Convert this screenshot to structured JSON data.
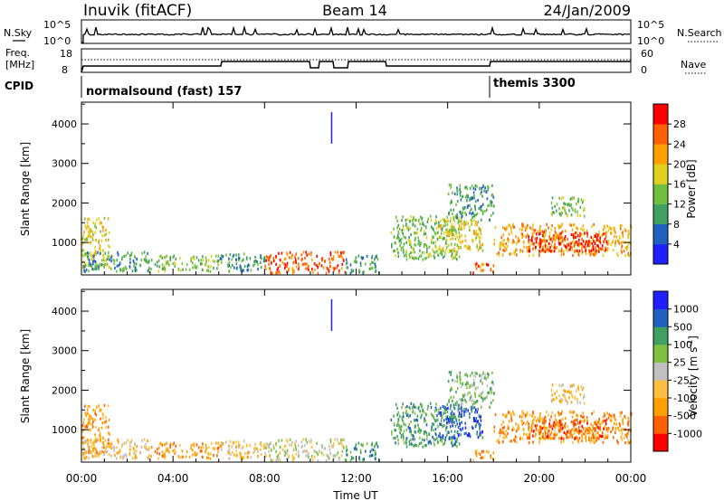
{
  "header": {
    "station": "Inuvik (fitACF)",
    "beam": "Beam 14",
    "date": "24/Jan/2009"
  },
  "panel_labels": {
    "nsky": "N.Sky",
    "freq_line1": "Freq.",
    "freq_line2": "[MHz]",
    "cpid": "CPID",
    "nsearch": "N.Search",
    "nave": "Nave",
    "nsky_top": "10^5",
    "nsky_bottom": "10^0",
    "nsearch_top": "10^5",
    "nsearch_bottom": "10^0",
    "freq_top": "18",
    "freq_bottom": "8",
    "nave_top": "60",
    "nave_bottom": "0"
  },
  "cpid_labels": {
    "first": "normalsound (fast) 157",
    "second": "themis 3300"
  },
  "colors": {
    "power": [
      "#2020ff",
      "#2060c0",
      "#40a060",
      "#70c040",
      "#e0d020",
      "#ffa000",
      "#ff6000",
      "#ff0000"
    ],
    "velocity": [
      "#ff0000",
      "#ff6000",
      "#ffa000",
      "#ffc040",
      "#c0c0c0",
      "#80c040",
      "#40a060",
      "#2060c0",
      "#2020ff"
    ]
  },
  "chart_data": [
    {
      "type": "heatmap",
      "name": "power",
      "xlabel": "",
      "ylabel": "Slant Range [km]",
      "x_ticks": [
        "00:00",
        "04:00",
        "08:00",
        "12:00",
        "16:00",
        "20:00",
        "00:00"
      ],
      "xlim_hours": [
        0,
        24
      ],
      "y_ticks": [
        1000,
        2000,
        3000,
        4000
      ],
      "ylim": [
        180,
        4550
      ],
      "colorbar": {
        "label": "Power [dB]",
        "ticks": [
          "4",
          "8",
          "12",
          "16",
          "20",
          "24",
          "28"
        ],
        "range": [
          0,
          32
        ]
      },
      "echo_regions": [
        {
          "t": [
            0.0,
            1.2
          ],
          "r": [
            400,
            1650
          ],
          "level": 4
        },
        {
          "t": [
            0.0,
            3.0
          ],
          "r": [
            300,
            800
          ],
          "level": 2
        },
        {
          "t": [
            3.0,
            6.0
          ],
          "r": [
            300,
            700
          ],
          "level": 3
        },
        {
          "t": [
            6.0,
            8.0
          ],
          "r": [
            300,
            750
          ],
          "level": 2
        },
        {
          "t": [
            8.0,
            11.5
          ],
          "r": [
            250,
            800
          ],
          "level": 6
        },
        {
          "t": [
            11.5,
            13.0
          ],
          "r": [
            250,
            700
          ],
          "level": 2
        },
        {
          "t": [
            13.5,
            16.5
          ],
          "r": [
            600,
            1700
          ],
          "level": 3
        },
        {
          "t": [
            15.5,
            17.5
          ],
          "r": [
            800,
            1600
          ],
          "level": 4
        },
        {
          "t": [
            16.0,
            18.0
          ],
          "r": [
            1600,
            2500
          ],
          "level": 2
        },
        {
          "t": [
            17.0,
            18.0
          ],
          "r": [
            250,
            500
          ],
          "level": 6
        },
        {
          "t": [
            18.0,
            24.0
          ],
          "r": [
            700,
            1500
          ],
          "level": 5
        },
        {
          "t": [
            19.5,
            23.0
          ],
          "r": [
            800,
            1300
          ],
          "level": 7
        },
        {
          "t": [
            20.5,
            22.0
          ],
          "r": [
            1700,
            2200
          ],
          "level": 3
        }
      ]
    },
    {
      "type": "heatmap",
      "name": "velocity",
      "xlabel": "Time UT",
      "ylabel": "Slant Range [km]",
      "x_ticks": [
        "00:00",
        "04:00",
        "08:00",
        "12:00",
        "16:00",
        "20:00",
        "00:00"
      ],
      "xlim_hours": [
        0,
        24
      ],
      "y_ticks": [
        1000,
        2000,
        3000,
        4000
      ],
      "ylim": [
        180,
        4550
      ],
      "colorbar": {
        "label_main": "Velocity  [m s",
        "label_sup": "-1",
        "label_close": "]",
        "ticks": [
          "1000",
          "500",
          "100",
          "25",
          "-25",
          "-100",
          "-500",
          "-1000"
        ]
      },
      "echo_regions": [
        {
          "t": [
            0.0,
            1.2
          ],
          "r": [
            400,
            1650
          ],
          "level": 2
        },
        {
          "t": [
            0.0,
            3.0
          ],
          "r": [
            300,
            800
          ],
          "level": 3
        },
        {
          "t": [
            3.0,
            6.0
          ],
          "r": [
            300,
            700
          ],
          "level": 2
        },
        {
          "t": [
            6.0,
            8.0
          ],
          "r": [
            300,
            750
          ],
          "level": 3
        },
        {
          "t": [
            8.0,
            11.5
          ],
          "r": [
            250,
            800
          ],
          "level": 4
        },
        {
          "t": [
            11.5,
            13.0
          ],
          "r": [
            250,
            700
          ],
          "level": 6
        },
        {
          "t": [
            13.5,
            16.5
          ],
          "r": [
            600,
            1700
          ],
          "level": 6
        },
        {
          "t": [
            15.5,
            17.5
          ],
          "r": [
            800,
            1600
          ],
          "level": 7
        },
        {
          "t": [
            16.0,
            18.0
          ],
          "r": [
            1600,
            2500
          ],
          "level": 5
        },
        {
          "t": [
            17.0,
            18.0
          ],
          "r": [
            250,
            500
          ],
          "level": 2
        },
        {
          "t": [
            18.0,
            24.0
          ],
          "r": [
            700,
            1500
          ],
          "level": 2
        },
        {
          "t": [
            19.5,
            23.0
          ],
          "r": [
            800,
            1300
          ],
          "level": 1
        },
        {
          "t": [
            20.5,
            22.0
          ],
          "r": [
            1700,
            2200
          ],
          "level": 3
        }
      ]
    }
  ]
}
